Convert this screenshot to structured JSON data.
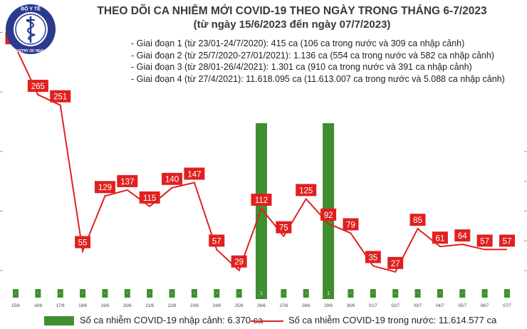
{
  "header": {
    "title": "THEO DÕI CA NHIỄM MỚI COVID-19 THEO NGÀY TRONG THÁNG 6-7/2023",
    "subtitle": "(từ ngày 15/6/2023 đến ngày 07/7/2023)"
  },
  "logo": {
    "top_text": "BỘ Y TẾ",
    "bottom_text": "MINISTRY OF HEALTH",
    "color": "#2b3a8f"
  },
  "notes": [
    "- Giai đoạn 1 (từ 23/01-24/7/2020): 415 ca (106 ca trong nước và 309 ca nhập cảnh)",
    "- Giai đoạn 2 (từ 25/7/2020-27/01/2021): 1.136 ca (554 ca trong nước và 582 ca nhập cảnh)",
    "- Giai đoạn 3 (từ 28/01-26/4/2021): 1.301 ca (910 ca trong nước và 391 ca nhập cảnh)",
    "- Giai đoạn 4 (từ 27/4/2021): 11.618.095 ca (11.613.007 ca trong nước và 5.088 ca nhập cảnh)"
  ],
  "legend": {
    "bar_label": "Số ca nhiễm COVID-19 nhập cảnh: 6.370 ca",
    "line_label": "Số ca nhiễm COVID-19 trong nước: 11.614.577 ca"
  },
  "colors": {
    "bar": "#3e8f2f",
    "line": "#e02020",
    "label_bg": "#e02020",
    "label_text": "#ffffff"
  },
  "chart_data": {
    "type": "bar",
    "categories": [
      "15/6",
      "16/6",
      "17/6",
      "18/6",
      "19/6",
      "20/6",
      "21/6",
      "22/6",
      "23/6",
      "24/6",
      "25/6",
      "26/6",
      "27/6",
      "28/6",
      "29/6",
      "30/6",
      "01/7",
      "02/7",
      "03/7",
      "04/7",
      "05/7",
      "06/7",
      "07/7"
    ],
    "series": [
      {
        "name": "Số ca nhiễm COVID-19 nhập cảnh: 6.370 ca",
        "type": "bar",
        "values": [
          0,
          0,
          0,
          0,
          0,
          0,
          0,
          0,
          0,
          0,
          0,
          1,
          0,
          0,
          1,
          0,
          0,
          0,
          0,
          0,
          0,
          0,
          0
        ],
        "labels": [
          "-",
          "-",
          "-",
          "-",
          "-",
          "-",
          "-",
          "-",
          "-",
          "-",
          "-",
          "1",
          "-",
          "-",
          "1",
          "-",
          "-",
          "-",
          "-",
          "-",
          "-",
          "-",
          "-"
        ]
      },
      {
        "name": "Số ca nhiễm COVID-19 trong nước: 11.614.577 ca",
        "type": "line",
        "values": [
          329,
          265,
          251,
          55,
          129,
          137,
          115,
          140,
          147,
          57,
          29,
          112,
          75,
          125,
          92,
          79,
          35,
          27,
          85,
          61,
          64,
          57,
          57
        ]
      }
    ],
    "ylim_line": [
      0,
      360
    ],
    "ylim_bar": [
      0,
      1.2
    ],
    "grid": false
  }
}
